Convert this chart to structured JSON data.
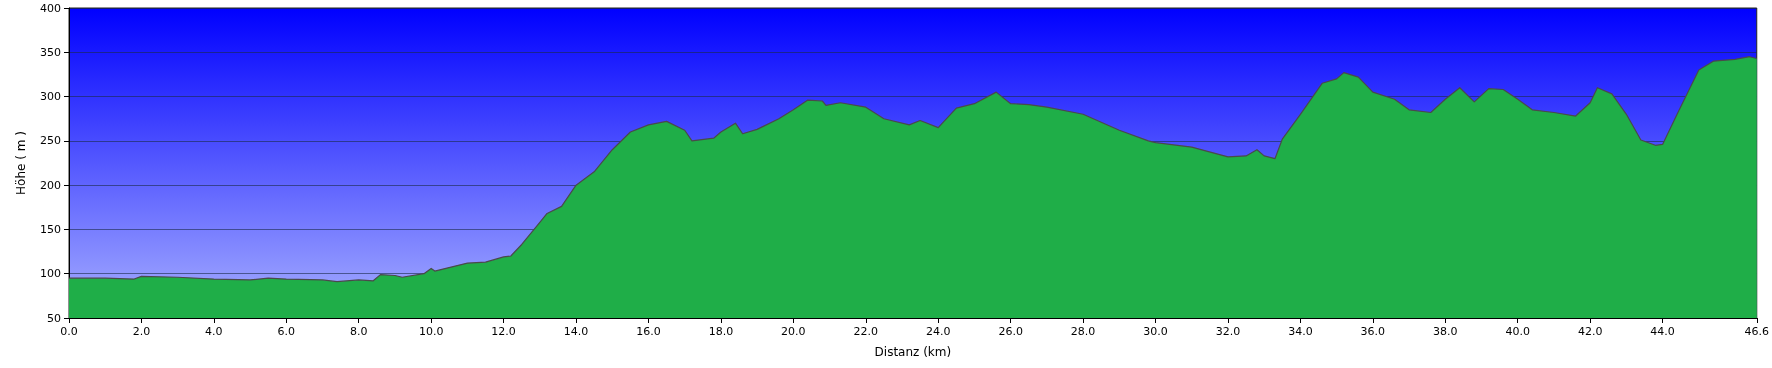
{
  "chart_data": {
    "type": "area",
    "xlabel": "Distanz (km)",
    "ylabel": "Höhe ( m )",
    "xlim": [
      0,
      46.6
    ],
    "ylim": [
      50,
      400
    ],
    "xticks": [
      {
        "value": 0,
        "label": "0.0"
      },
      {
        "value": 2,
        "label": "2.0"
      },
      {
        "value": 4,
        "label": "4.0"
      },
      {
        "value": 6,
        "label": "6.0"
      },
      {
        "value": 8,
        "label": "8.0"
      },
      {
        "value": 10,
        "label": "10.0"
      },
      {
        "value": 12,
        "label": "12.0"
      },
      {
        "value": 14,
        "label": "14.0"
      },
      {
        "value": 16,
        "label": "16.0"
      },
      {
        "value": 18,
        "label": "18.0"
      },
      {
        "value": 20,
        "label": "20.0"
      },
      {
        "value": 22,
        "label": "22.0"
      },
      {
        "value": 24,
        "label": "24.0"
      },
      {
        "value": 26,
        "label": "26.0"
      },
      {
        "value": 28,
        "label": "28.0"
      },
      {
        "value": 30,
        "label": "30.0"
      },
      {
        "value": 32,
        "label": "32.0"
      },
      {
        "value": 34,
        "label": "34.0"
      },
      {
        "value": 36,
        "label": "36.0"
      },
      {
        "value": 38,
        "label": "38.0"
      },
      {
        "value": 40,
        "label": "40.0"
      },
      {
        "value": 42,
        "label": "42.0"
      },
      {
        "value": 44,
        "label": "44.0"
      },
      {
        "value": 46.6,
        "label": "46.6"
      }
    ],
    "yticks": [
      50,
      100,
      150,
      200,
      250,
      300,
      350,
      400
    ],
    "grid": "y",
    "series": [
      {
        "color": "#1fae48",
        "x": [
          0,
          1,
          1.8,
          2,
          3,
          4,
          5,
          5.5,
          6,
          7,
          7.4,
          8,
          8.4,
          8.6,
          9,
          9.2,
          9.8,
          10,
          10.1,
          11,
          11.5,
          12,
          12.2,
          12.5,
          13,
          13.2,
          13.6,
          14,
          14.5,
          15,
          15.5,
          16,
          16.5,
          17,
          17.2,
          17.8,
          18,
          18.4,
          18.6,
          19,
          19.6,
          20,
          20.4,
          20.8,
          20.9,
          21.3,
          22,
          22.5,
          23.2,
          23.5,
          24,
          24.5,
          25,
          25.6,
          26,
          26.5,
          27,
          28,
          29,
          29.8,
          30,
          31,
          32,
          32.5,
          32.8,
          33,
          33.3,
          33.5,
          34,
          34.6,
          35,
          35.2,
          35.6,
          36,
          36.6,
          37,
          37.6,
          38,
          38.4,
          38.8,
          39.2,
          39.6,
          40,
          40.4,
          41,
          41.6,
          42,
          42.2,
          42.6,
          43,
          43.4,
          43.8,
          44,
          44.4,
          45,
          45.4,
          46,
          46.4,
          46.6
        ],
        "values": [
          95,
          95,
          94,
          97,
          96,
          94,
          93,
          95,
          94,
          93,
          91,
          93,
          92,
          99,
          98,
          96,
          100,
          106,
          103,
          112,
          113,
          119,
          120,
          133,
          158,
          168,
          176,
          200,
          215,
          240,
          260,
          268,
          272,
          262,
          250,
          253,
          260,
          270,
          258,
          263,
          275,
          285,
          296,
          295,
          290,
          293,
          288,
          275,
          268,
          273,
          265,
          287,
          292,
          305,
          292,
          291,
          288,
          280,
          262,
          250,
          248,
          243,
          232,
          233,
          240,
          233,
          230,
          252,
          280,
          315,
          320,
          327,
          322,
          305,
          297,
          285,
          282,
          297,
          310,
          294,
          309,
          308,
          297,
          285,
          282,
          278,
          293,
          310,
          303,
          280,
          251,
          245,
          246,
          280,
          330,
          340,
          342,
          345,
          343
        ]
      }
    ]
  }
}
